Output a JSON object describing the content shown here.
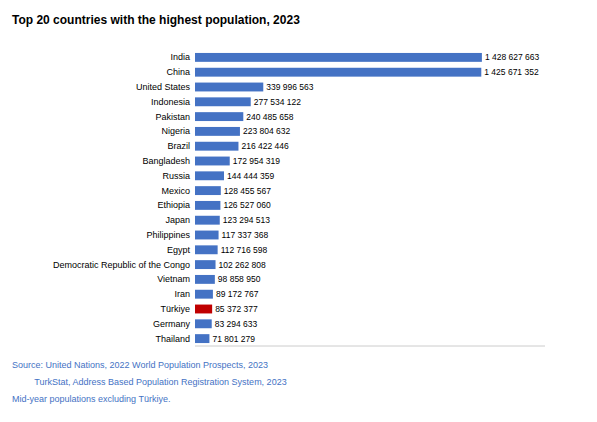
{
  "chart_data": {
    "type": "bar",
    "orientation": "horizontal",
    "title": "Top 20 countries with the highest population, 2023",
    "categories": [
      "Thailand",
      "Germany",
      "Türkiye",
      "Iran",
      "Vietnam",
      "Democratic Republic of the Congo",
      "Egypt",
      "Philippines",
      "Japan",
      "Ethiopia",
      "Mexico",
      "Russia",
      "Bangladesh",
      "Brazil",
      "Nigeria",
      "Pakistan",
      "Indonesia",
      "United States",
      "China",
      "India"
    ],
    "values": [
      71801279,
      83294633,
      85372377,
      89172767,
      98858950,
      102262808,
      112716598,
      117337368,
      123294513,
      126527060,
      128455567,
      144444359,
      172954319,
      216422446,
      223804632,
      240485658,
      277534122,
      339996563,
      1425671352,
      1428627663
    ],
    "value_labels": [
      "71 801 279",
      "83 294 633",
      "85 372 377",
      "89 172 767",
      "98 858 950",
      "102 262 808",
      "112 716 598",
      "117 337 368",
      "123 294 513",
      "126 527 060",
      "128 455 567",
      "144 444 359",
      "172 954 319",
      "216 422 446",
      "223 804 632",
      "240 485 658",
      "277 534 122",
      "339 996 563",
      "1 425 671 352",
      "1 428 627 663"
    ],
    "colors": [
      "#4472C4",
      "#4472C4",
      "#C00000",
      "#4472C4",
      "#4472C4",
      "#4472C4",
      "#4472C4",
      "#4472C4",
      "#4472C4",
      "#4472C4",
      "#4472C4",
      "#4472C4",
      "#4472C4",
      "#4472C4",
      "#4472C4",
      "#4472C4",
      "#4472C4",
      "#4472C4",
      "#4472C4",
      "#4472C4"
    ],
    "data_labels": true,
    "tick_labels": "y",
    "xlim": [
      0,
      1742925748.86
    ],
    "annotations": [
      "Source: United Nations, 2022 World Population Prospects, 2023",
      "         TurkStat, Address Based Population Registration System, 2023",
      "Mid-year populations excluding Türkiye."
    ],
    "annotation_color": "#4472C4"
  }
}
